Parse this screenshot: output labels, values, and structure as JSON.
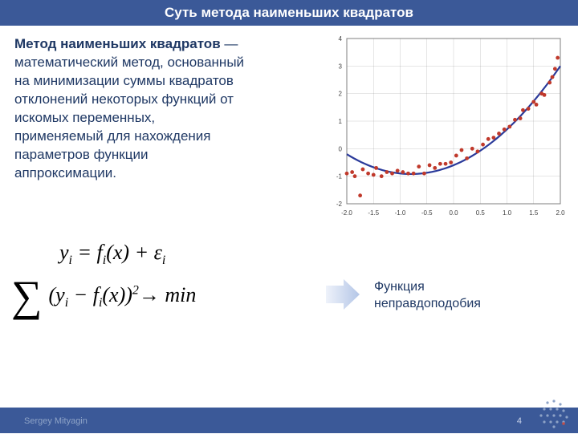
{
  "header": {
    "title": "Суть метода наименьших квадратов"
  },
  "paragraph": {
    "bold": "Метод наименьших квадратов ",
    "rest": " — математический метод, основанный на минимизации суммы квадратов отклонений некоторых функций от искомых переменных, применяемый для нахождения параметров функции аппроксимации."
  },
  "formula": {
    "line1": "yᵢ = fᵢ(x) + εᵢ",
    "line2": "Σ (yᵢ − fᵢ(x))² → min"
  },
  "caption": "Функция неправдоподобия",
  "footer": {
    "author": "Sergey Mityagin",
    "page": "4"
  },
  "chart": {
    "type": "scatter+line",
    "background_color": "#ffffff",
    "border_color": "#808080",
    "grid_color": "#808080",
    "tick_font_size": 8,
    "xlim": [
      -2.0,
      2.0
    ],
    "ylim": [
      -2,
      4
    ],
    "xticks": [
      -2.0,
      -1.5,
      -1.0,
      -0.5,
      0.0,
      0.5,
      1.0,
      1.5,
      2.0
    ],
    "yticks": [
      -2,
      -1,
      0,
      1,
      2,
      3,
      4
    ],
    "curve": {
      "color": "#2a3a9a",
      "width": 2.2,
      "formula": "0.5*x^2 + 0.8*x - 0.6",
      "samples": 60
    },
    "points": {
      "color": "#c0392b",
      "radius": 2.4,
      "data": [
        [
          -2.0,
          -0.9
        ],
        [
          -1.9,
          -0.85
        ],
        [
          -1.85,
          -1.0
        ],
        [
          -1.75,
          -1.7
        ],
        [
          -1.7,
          -0.75
        ],
        [
          -1.6,
          -0.9
        ],
        [
          -1.5,
          -0.95
        ],
        [
          -1.45,
          -0.7
        ],
        [
          -1.35,
          -1.0
        ],
        [
          -1.25,
          -0.85
        ],
        [
          -1.15,
          -0.9
        ],
        [
          -1.05,
          -0.8
        ],
        [
          -0.95,
          -0.85
        ],
        [
          -0.85,
          -0.9
        ],
        [
          -0.75,
          -0.9
        ],
        [
          -0.65,
          -0.65
        ],
        [
          -0.55,
          -0.9
        ],
        [
          -0.45,
          -0.6
        ],
        [
          -0.35,
          -0.7
        ],
        [
          -0.25,
          -0.55
        ],
        [
          -0.15,
          -0.55
        ],
        [
          -0.05,
          -0.5
        ],
        [
          0.05,
          -0.25
        ],
        [
          0.15,
          -0.05
        ],
        [
          0.25,
          -0.35
        ],
        [
          0.35,
          0.0
        ],
        [
          0.45,
          -0.1
        ],
        [
          0.55,
          0.15
        ],
        [
          0.65,
          0.35
        ],
        [
          0.75,
          0.4
        ],
        [
          0.85,
          0.55
        ],
        [
          0.95,
          0.7
        ],
        [
          1.05,
          0.8
        ],
        [
          1.15,
          1.05
        ],
        [
          1.25,
          1.1
        ],
        [
          1.3,
          1.4
        ],
        [
          1.4,
          1.45
        ],
        [
          1.5,
          1.7
        ],
        [
          1.55,
          1.6
        ],
        [
          1.65,
          2.0
        ],
        [
          1.7,
          1.95
        ],
        [
          1.8,
          2.4
        ],
        [
          1.85,
          2.6
        ],
        [
          1.9,
          2.9
        ],
        [
          1.95,
          3.3
        ]
      ]
    }
  },
  "arrow": {
    "fill": "#b4c6e7",
    "stroke": "#b4c6e7"
  },
  "colors": {
    "header_bg": "#3b5998",
    "text": "#1f3864"
  },
  "decor_dots": {
    "color": "#8ea3c7",
    "accent": "#c0504d",
    "positions": [
      [
        14,
        8
      ],
      [
        22,
        6
      ],
      [
        30,
        10
      ],
      [
        10,
        16
      ],
      [
        18,
        16
      ],
      [
        26,
        16
      ],
      [
        34,
        18
      ],
      [
        6,
        24
      ],
      [
        14,
        24
      ],
      [
        22,
        24
      ],
      [
        30,
        24
      ],
      [
        38,
        26
      ],
      [
        10,
        32
      ],
      [
        18,
        32
      ],
      [
        26,
        32
      ],
      [
        34,
        32
      ],
      [
        22,
        38
      ]
    ],
    "accent_pos": [
      34,
      34
    ]
  }
}
